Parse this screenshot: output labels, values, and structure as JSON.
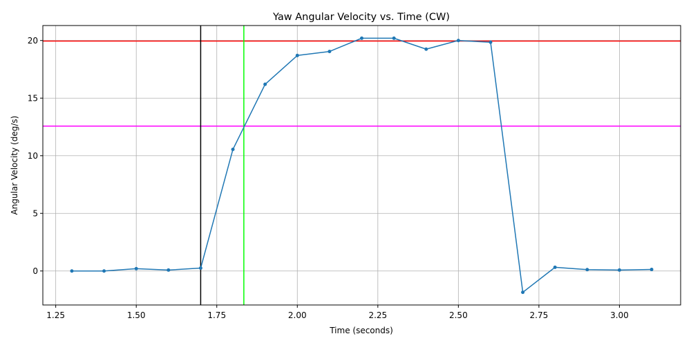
{
  "chart_data": {
    "type": "line",
    "title": "Yaw Angular Velocity vs. Time (CW)",
    "xlabel": "Time (seconds)",
    "ylabel": "Angular Velocity (deg/s)",
    "xlim": [
      1.21,
      3.19
    ],
    "ylim": [
      -2.95,
      21.3
    ],
    "x_ticks": [
      1.25,
      1.5,
      1.75,
      2.0,
      2.25,
      2.5,
      2.75,
      3.0
    ],
    "x_tick_labels": [
      "1.25",
      "1.50",
      "1.75",
      "2.00",
      "2.25",
      "2.50",
      "2.75",
      "3.00"
    ],
    "y_ticks": [
      0,
      5,
      10,
      15,
      20
    ],
    "y_tick_labels": [
      "0",
      "5",
      "10",
      "15",
      "20"
    ],
    "grid": true,
    "series": [
      {
        "color": "#1f77b4",
        "marker": "dot",
        "x": [
          1.3,
          1.4,
          1.5,
          1.6,
          1.7,
          1.8,
          1.9,
          2.0,
          2.1,
          2.2,
          2.3,
          2.4,
          2.5,
          2.6,
          2.7,
          2.8,
          2.9,
          3.0,
          3.1
        ],
        "y": [
          0.0,
          0.0,
          0.2,
          0.08,
          0.25,
          10.55,
          16.2,
          18.7,
          19.05,
          20.2,
          20.2,
          19.25,
          20.0,
          19.85,
          -1.85,
          0.32,
          0.12,
          0.08,
          0.13
        ]
      }
    ],
    "hlines": [
      {
        "y": 19.95,
        "color": "#ff0000"
      },
      {
        "y": 12.57,
        "color": "#ff00ff"
      }
    ],
    "vlines": [
      {
        "x": 1.7,
        "color": "#000000"
      },
      {
        "x": 1.834,
        "color": "#00ff00"
      }
    ]
  }
}
